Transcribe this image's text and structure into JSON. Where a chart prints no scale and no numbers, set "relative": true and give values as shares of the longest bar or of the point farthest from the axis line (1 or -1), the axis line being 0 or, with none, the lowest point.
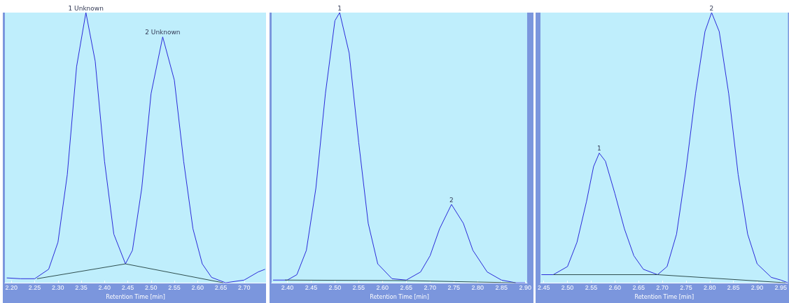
{
  "chart_data": [
    {
      "type": "line",
      "relative": true,
      "xlabel": "Retention Time [min]",
      "xlim": [
        2.186,
        2.747
      ],
      "xticks": [
        {
          "value": 2.2,
          "label": "2.20"
        },
        2.25,
        {
          "value": 2.3,
          "label": "2.30"
        },
        2.35,
        {
          "value": 2.4,
          "label": "2.40"
        },
        2.45,
        {
          "value": 2.5,
          "label": "2.50"
        },
        2.55,
        {
          "value": 2.6,
          "label": "2.60"
        },
        2.65,
        {
          "value": 2.7,
          "label": "2.70"
        }
      ],
      "grid": false,
      "series": [
        {
          "color": "#2b2bd9",
          "x": [
            2.19,
            2.22,
            2.25,
            2.28,
            2.3,
            2.32,
            2.34,
            2.36,
            2.38,
            2.4,
            2.42,
            2.445,
            2.46,
            2.48,
            2.5,
            2.525,
            2.55,
            2.57,
            2.59,
            2.61,
            2.63,
            2.66,
            2.7,
            2.73,
            2.745
          ],
          "values": [
            0.018,
            0.015,
            0.015,
            0.05,
            0.15,
            0.4,
            0.8,
            1.0,
            0.82,
            0.45,
            0.18,
            0.07,
            0.12,
            0.35,
            0.7,
            0.91,
            0.75,
            0.45,
            0.2,
            0.07,
            0.02,
            0,
            0.01,
            0.04,
            0.05
          ]
        },
        {
          "color": "#2f4f4f",
          "x": [
            2.255,
            2.445,
            2.655
          ],
          "values": [
            0.015,
            0.07,
            0
          ]
        }
      ],
      "annotations": [
        {
          "text": "1 Unknown",
          "x": 2.36,
          "y": 1.0
        },
        {
          "text": "2 Unknown",
          "x": 2.525,
          "y": 0.91
        }
      ]
    },
    {
      "type": "line",
      "relative": true,
      "xlabel": "Retention Time [min]",
      "xlim": [
        2.367,
        2.904
      ],
      "xticks": [
        {
          "value": 2.4,
          "label": "2.40"
        },
        2.45,
        {
          "value": 2.5,
          "label": "2.50"
        },
        2.55,
        {
          "value": 2.6,
          "label": "2.60"
        },
        2.65,
        {
          "value": 2.7,
          "label": "2.70"
        },
        2.75,
        {
          "value": 2.8,
          "label": "2.80"
        },
        2.85,
        {
          "value": 2.9,
          "label": "2.90"
        }
      ],
      "grid": false,
      "series": [
        {
          "color": "#2b2bd9",
          "x": [
            2.37,
            2.4,
            2.42,
            2.44,
            2.46,
            2.48,
            2.5,
            2.51,
            2.53,
            2.55,
            2.57,
            2.59,
            2.62,
            2.65,
            2.68,
            2.7,
            2.72,
            2.745,
            2.77,
            2.79,
            2.82,
            2.85,
            2.88,
            2.9
          ],
          "values": [
            0.01,
            0.01,
            0.03,
            0.12,
            0.35,
            0.7,
            0.97,
            1.0,
            0.85,
            0.52,
            0.22,
            0.07,
            0.015,
            0.01,
            0.04,
            0.1,
            0.2,
            0.29,
            0.22,
            0.12,
            0.04,
            0.01,
            0,
            0
          ]
        },
        {
          "color": "#2f4f4f",
          "x": [
            2.395,
            2.65,
            2.88
          ],
          "values": [
            0.01,
            0.008,
            0
          ]
        }
      ],
      "annotations": [
        {
          "text": "1",
          "x": 2.51,
          "y": 1.0
        },
        {
          "text": "2",
          "x": 2.745,
          "y": 0.29
        }
      ]
    },
    {
      "type": "line",
      "relative": true,
      "xlabel": "Retention Time [min]",
      "xlim": [
        2.443,
        2.965
      ],
      "xticks": [
        2.45,
        {
          "value": 2.5,
          "label": "2.50"
        },
        2.55,
        {
          "value": 2.6,
          "label": "2.60"
        },
        2.65,
        {
          "value": 2.7,
          "label": "2.70"
        },
        2.75,
        {
          "value": 2.8,
          "label": "2.80"
        },
        2.85,
        {
          "value": 2.9,
          "label": "2.90"
        },
        2.95
      ],
      "grid": false,
      "series": [
        {
          "color": "#2b2bd9",
          "x": [
            2.445,
            2.47,
            2.5,
            2.52,
            2.54,
            2.555,
            2.567,
            2.58,
            2.6,
            2.62,
            2.64,
            2.66,
            2.69,
            2.71,
            2.73,
            2.75,
            2.77,
            2.79,
            2.804,
            2.82,
            2.84,
            2.86,
            2.88,
            2.9,
            2.93,
            2.95,
            2.965
          ],
          "values": [
            0.03,
            0.03,
            0.06,
            0.15,
            0.3,
            0.43,
            0.48,
            0.45,
            0.33,
            0.2,
            0.1,
            0.05,
            0.03,
            0.06,
            0.18,
            0.42,
            0.7,
            0.93,
            1.0,
            0.93,
            0.7,
            0.4,
            0.18,
            0.07,
            0.02,
            0.01,
            0
          ]
        },
        {
          "color": "#2f4f4f",
          "x": [
            2.47,
            2.69,
            2.96
          ],
          "values": [
            0.03,
            0.03,
            0
          ]
        }
      ],
      "annotations": [
        {
          "text": "1",
          "x": 2.567,
          "y": 0.48
        },
        {
          "text": "2",
          "x": 2.804,
          "y": 1.0
        }
      ]
    }
  ]
}
